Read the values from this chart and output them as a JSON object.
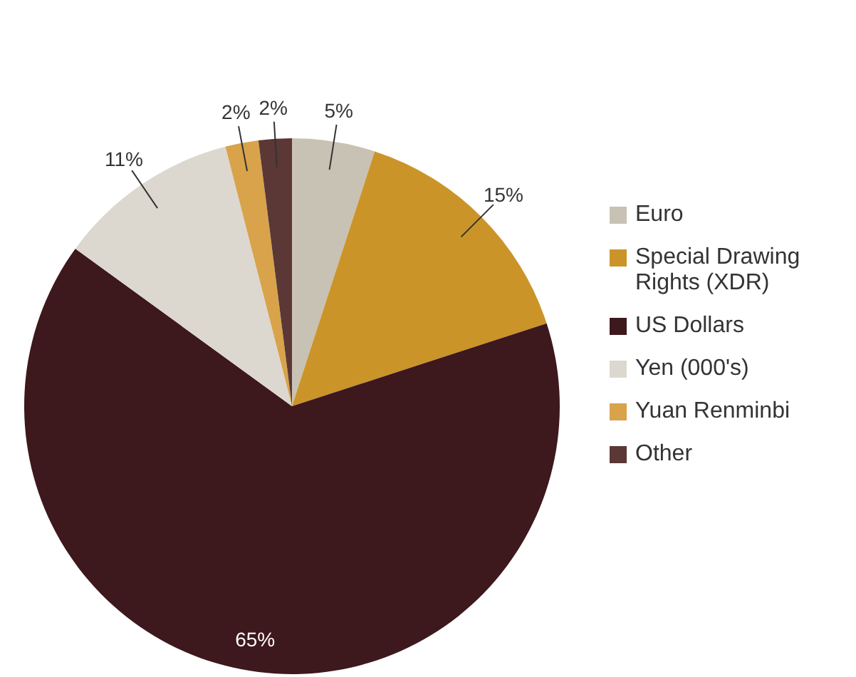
{
  "chart_data": {
    "type": "pie",
    "categories": [
      "Euro",
      "Special Drawing Rights (XDR)",
      "US Dollars",
      "Yen (000's)",
      "Yuan Renminbi",
      "Other"
    ],
    "values": [
      5,
      15,
      65,
      11,
      2,
      2
    ],
    "colors": [
      "#c8c2b4",
      "#cb9429",
      "#3d181c",
      "#dcd8d0",
      "#d8a34a",
      "#5b3735"
    ],
    "value_labels": [
      "5%",
      "15%",
      "65%",
      "11%",
      "2%",
      "2%"
    ],
    "legend": "right"
  }
}
